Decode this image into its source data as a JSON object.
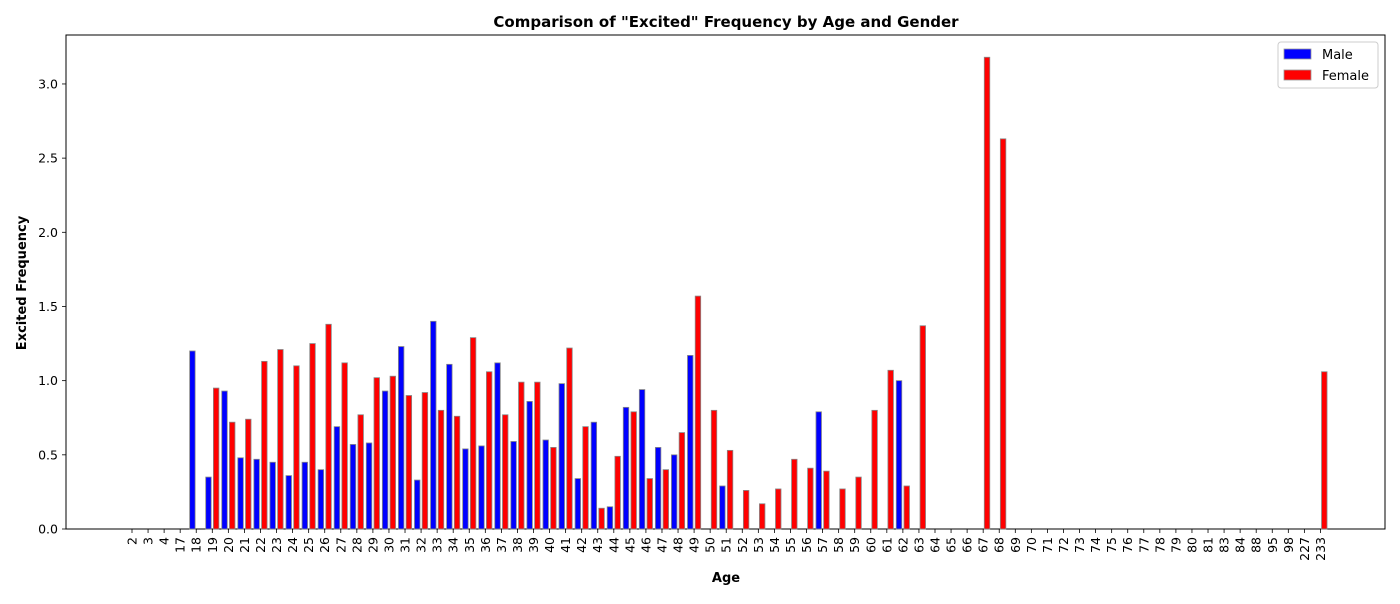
{
  "chart_data": {
    "type": "bar",
    "title": "Comparison of \"Excited\" Frequency by Age and Gender",
    "xlabel": "Age",
    "ylabel": "Excited Frequency",
    "ylim": [
      0,
      3.33
    ],
    "yticks": [
      0.0,
      0.5,
      1.0,
      1.5,
      2.0,
      2.5,
      3.0
    ],
    "ytick_labels": [
      "0.0",
      "0.5",
      "1.0",
      "1.5",
      "2.0",
      "2.5",
      "3.0"
    ],
    "grid": false,
    "legend": {
      "position": "top-right"
    },
    "categories": [
      "2",
      "3",
      "4",
      "17",
      "18",
      "19",
      "20",
      "21",
      "22",
      "23",
      "24",
      "25",
      "26",
      "27",
      "28",
      "29",
      "30",
      "31",
      "32",
      "33",
      "34",
      "35",
      "36",
      "37",
      "38",
      "39",
      "40",
      "41",
      "42",
      "43",
      "44",
      "45",
      "46",
      "47",
      "48",
      "49",
      "50",
      "51",
      "52",
      "53",
      "54",
      "55",
      "56",
      "57",
      "58",
      "59",
      "60",
      "61",
      "62",
      "63",
      "64",
      "65",
      "66",
      "67",
      "68",
      "69",
      "70",
      "71",
      "72",
      "73",
      "74",
      "75",
      "76",
      "77",
      "78",
      "79",
      "80",
      "81",
      "83",
      "84",
      "88",
      "95",
      "98",
      "227",
      "233"
    ],
    "series": [
      {
        "name": "Male",
        "color": "#0000ff",
        "values": [
          0,
          0,
          0,
          0,
          1.2,
          0.35,
          0.93,
          0.48,
          0.47,
          0.45,
          0.36,
          0.45,
          0.4,
          0.69,
          0.57,
          0.58,
          0.93,
          1.23,
          0.33,
          1.4,
          1.11,
          0.54,
          0.56,
          1.12,
          0.59,
          0.86,
          0.6,
          0.98,
          0.34,
          0.72,
          0.15,
          0.82,
          0.94,
          0.55,
          0.5,
          1.17,
          0,
          0.29,
          0,
          0,
          0,
          0,
          0,
          0.79,
          0,
          0,
          0,
          0,
          1.0,
          0,
          0,
          0,
          0,
          0,
          0,
          0,
          0,
          0,
          0,
          0,
          0,
          0,
          0,
          0,
          0,
          0,
          0,
          0,
          0,
          0,
          0,
          0,
          0,
          0,
          0
        ]
      },
      {
        "name": "Female",
        "color": "#ff0000",
        "values": [
          0,
          0,
          0,
          0,
          0,
          0.95,
          0.72,
          0.74,
          1.13,
          1.21,
          1.1,
          1.25,
          1.38,
          1.12,
          0.77,
          1.02,
          1.03,
          0.9,
          0.92,
          0.8,
          0.76,
          1.29,
          1.06,
          0.77,
          0.99,
          0.99,
          0.55,
          1.22,
          0.69,
          0.14,
          0.49,
          0.79,
          0.34,
          0.4,
          0.65,
          1.57,
          0.8,
          0.53,
          0.26,
          0.17,
          0.27,
          0.47,
          0.41,
          0.39,
          0.27,
          0.35,
          0.8,
          1.07,
          0.29,
          1.37,
          0,
          0,
          0,
          3.18,
          2.63,
          0,
          0,
          0,
          0,
          0,
          0,
          0,
          0,
          0,
          0,
          0,
          0,
          0,
          0,
          0,
          0,
          0,
          0,
          0,
          1.06
        ]
      }
    ]
  }
}
